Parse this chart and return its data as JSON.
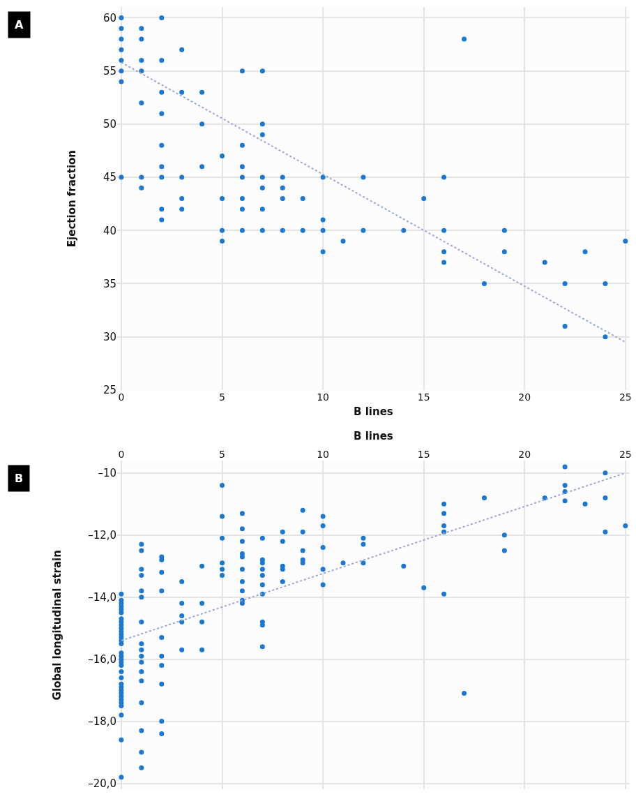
{
  "chart_data": [
    {
      "type": "scatter",
      "annotations": [
        "A"
      ],
      "xlabel": "B lines",
      "ylabel": "Ejection fraction",
      "xlim": [
        -0.2,
        25.2
      ],
      "xticks": [
        0,
        5,
        10,
        15,
        20,
        25
      ],
      "ylim": [
        25,
        61
      ],
      "yticks": [
        25,
        30,
        35,
        40,
        45,
        50,
        55,
        60
      ],
      "grid": true,
      "marker": "circle",
      "series": [
        {
          "type": "scatter",
          "color": "#1a78d2",
          "x": [
            0,
            0,
            0,
            0,
            0,
            0,
            0,
            0,
            1,
            1,
            1,
            1,
            1,
            1,
            1,
            2,
            2,
            2,
            2,
            2,
            2,
            2,
            2,
            2,
            3,
            3,
            3,
            3,
            3,
            4,
            4,
            4,
            5,
            5,
            5,
            5,
            6,
            6,
            6,
            6,
            6,
            6,
            6,
            7,
            7,
            7,
            7,
            7,
            7,
            7,
            8,
            8,
            8,
            8,
            9,
            9,
            10,
            10,
            10,
            10,
            11,
            12,
            12,
            14,
            15,
            16,
            16,
            16,
            16,
            17,
            18,
            19,
            19,
            21,
            22,
            22,
            23,
            24,
            24,
            25
          ],
          "values": [
            60,
            59,
            58,
            57,
            56,
            55,
            54,
            45,
            59,
            58,
            56,
            55,
            52,
            45,
            44,
            60,
            56,
            53,
            51,
            48,
            46,
            45,
            42,
            41,
            57,
            53,
            45,
            43,
            42,
            53,
            50,
            46,
            47,
            43,
            40,
            39,
            55,
            48,
            46,
            45,
            43,
            42,
            40,
            55,
            50,
            49,
            45,
            44,
            42,
            40,
            45,
            44,
            43,
            40,
            43,
            40,
            45,
            41,
            40,
            38,
            39,
            45,
            40,
            40,
            43,
            45,
            40,
            38,
            37,
            58,
            35,
            40,
            38,
            37,
            35,
            31,
            38,
            35,
            30,
            39
          ]
        },
        {
          "type": "line",
          "color": "#9aa6d8",
          "line_style": "dotted",
          "marker": "none",
          "x": [
            0,
            25
          ],
          "values": [
            55.8,
            29.5
          ]
        }
      ]
    },
    {
      "type": "scatter",
      "annotations": [
        "B"
      ],
      "xlabel": "B lines",
      "ylabel": "Global longitudinal strain",
      "xlim": [
        -0.2,
        25.2
      ],
      "xticks": [
        0,
        5,
        10,
        15,
        20,
        25
      ],
      "ylim": [
        -20.2,
        -9.6
      ],
      "yticks": [
        {
          "value": -10,
          "label": "–10"
        },
        {
          "value": -12,
          "label": "–12,0"
        },
        {
          "value": -14,
          "label": "–14,0"
        },
        {
          "value": -16,
          "label": "–16,0"
        },
        {
          "value": -18,
          "label": "–18,0"
        },
        {
          "value": -20,
          "label": "–20,0"
        }
      ],
      "grid": true,
      "marker": "circle",
      "series": [
        {
          "type": "scatter",
          "color": "#1a78d2",
          "x": [
            0,
            0,
            0,
            0,
            0,
            0,
            0,
            0,
            0,
            0,
            0,
            0,
            0,
            0,
            0,
            0,
            0,
            0,
            0,
            0,
            0,
            0,
            0,
            0,
            0,
            0,
            0,
            0,
            0,
            0,
            0,
            0,
            0,
            1,
            1,
            1,
            1,
            1,
            1,
            1,
            1,
            1,
            1,
            1,
            1,
            1,
            1,
            1,
            1,
            1,
            2,
            2,
            2,
            2,
            2,
            2,
            2,
            2,
            2,
            2,
            3,
            3,
            3,
            3,
            3,
            4,
            4,
            4,
            4,
            5,
            5,
            5,
            5,
            5,
            5,
            6,
            6,
            6,
            6,
            6,
            6,
            6,
            6,
            6,
            6,
            7,
            7,
            7,
            7,
            7,
            7,
            7,
            7,
            7,
            7,
            8,
            8,
            8,
            8,
            8,
            9,
            9,
            9,
            9,
            9,
            10,
            10,
            10,
            10,
            10,
            11,
            12,
            12,
            12,
            14,
            15,
            16,
            16,
            16,
            16,
            16,
            17,
            18,
            19,
            19,
            21,
            22,
            22,
            22,
            22,
            23,
            24,
            24,
            24,
            25
          ],
          "values": [
            -13.9,
            -14.1,
            -14.2,
            -14.3,
            -14.4,
            -14.5,
            -14.7,
            -14.8,
            -14.9,
            -15.0,
            -15.1,
            -15.2,
            -15.3,
            -15.4,
            -15.5,
            -15.8,
            -15.9,
            -16.0,
            -16.1,
            -16.2,
            -16.4,
            -16.6,
            -16.8,
            -16.9,
            -17.0,
            -17.1,
            -17.2,
            -17.3,
            -17.4,
            -17.5,
            -17.8,
            -18.6,
            -19.8,
            -12.3,
            -12.5,
            -13.1,
            -13.3,
            -13.8,
            -14.0,
            -14.8,
            -15.5,
            -15.7,
            -15.9,
            -16.1,
            -16.4,
            -16.7,
            -17.4,
            -18.3,
            -19.0,
            -19.5,
            -12.7,
            -12.8,
            -13.2,
            -13.8,
            -15.3,
            -15.9,
            -16.2,
            -16.8,
            -18.0,
            -18.4,
            -13.5,
            -14.2,
            -14.6,
            -14.8,
            -15.7,
            -13.0,
            -14.2,
            -14.8,
            -15.7,
            -10.4,
            -11.4,
            -12.1,
            -12.9,
            -13.1,
            -13.3,
            -11.3,
            -11.8,
            -12.2,
            -12.6,
            -12.7,
            -13.1,
            -13.5,
            -13.8,
            -14.1,
            -14.2,
            -12.1,
            -12.8,
            -12.9,
            -13.1,
            -13.3,
            -13.6,
            -13.9,
            -14.8,
            -14.9,
            -15.6,
            -11.9,
            -12.2,
            -13.0,
            -13.1,
            -13.5,
            -11.2,
            -11.9,
            -12.5,
            -12.8,
            -12.9,
            -11.4,
            -11.7,
            -12.4,
            -13.1,
            -13.6,
            -12.9,
            -12.1,
            -12.3,
            -12.9,
            -13.0,
            -13.7,
            -11.0,
            -11.3,
            -11.7,
            -11.9,
            -13.9,
            -17.1,
            -10.8,
            -12.0,
            -12.5,
            -10.8,
            -9.8,
            -10.4,
            -10.6,
            -10.9,
            -11.0,
            -10.0,
            -10.8,
            -11.9,
            -11.7
          ]
        },
        {
          "type": "line",
          "color": "#9aa6d8",
          "line_style": "dotted",
          "marker": "none",
          "x": [
            0,
            25
          ],
          "values": [
            -15.4,
            -10.0
          ]
        }
      ]
    }
  ]
}
